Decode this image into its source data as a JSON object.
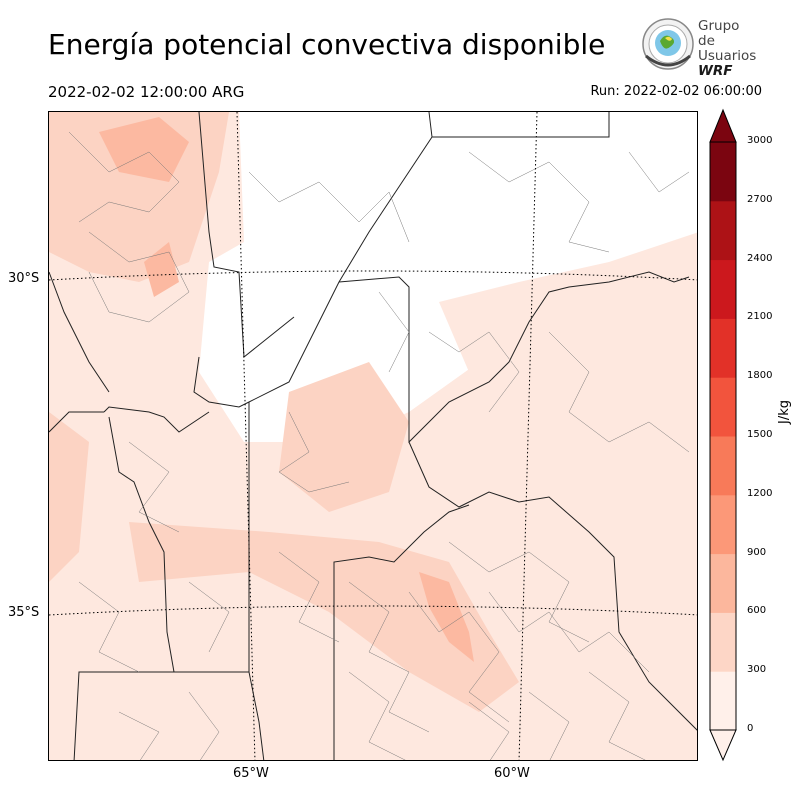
{
  "title": "Energía potencial convectiva disponible",
  "valid_time": "2022-02-02 12:00:00 ARG",
  "run_time": "Run: 2022-02-02 06:00:00",
  "logo": {
    "line1": "Grupo de",
    "line2": "Usuarios",
    "line3": "WRF"
  },
  "map": {
    "latitude_labels": [
      "30°S",
      "35°S"
    ],
    "longitude_labels": [
      "65°W",
      "60°W"
    ],
    "field": "CAPE",
    "field_colors": [
      "#fee8df",
      "#fcd3c3",
      "#fcb9a1"
    ]
  },
  "colorbar": {
    "unit": "J/kg",
    "ticks": [
      "0",
      "300",
      "600",
      "900",
      "1200",
      "1500",
      "1800",
      "2100",
      "2400",
      "2700",
      "3000"
    ],
    "colors": [
      "#fff0ea",
      "#fdd6c6",
      "#fcb79d",
      "#fc9878",
      "#f87a59",
      "#f2543d",
      "#e23128",
      "#cc181d",
      "#ad1216",
      "#7b0510"
    ]
  }
}
